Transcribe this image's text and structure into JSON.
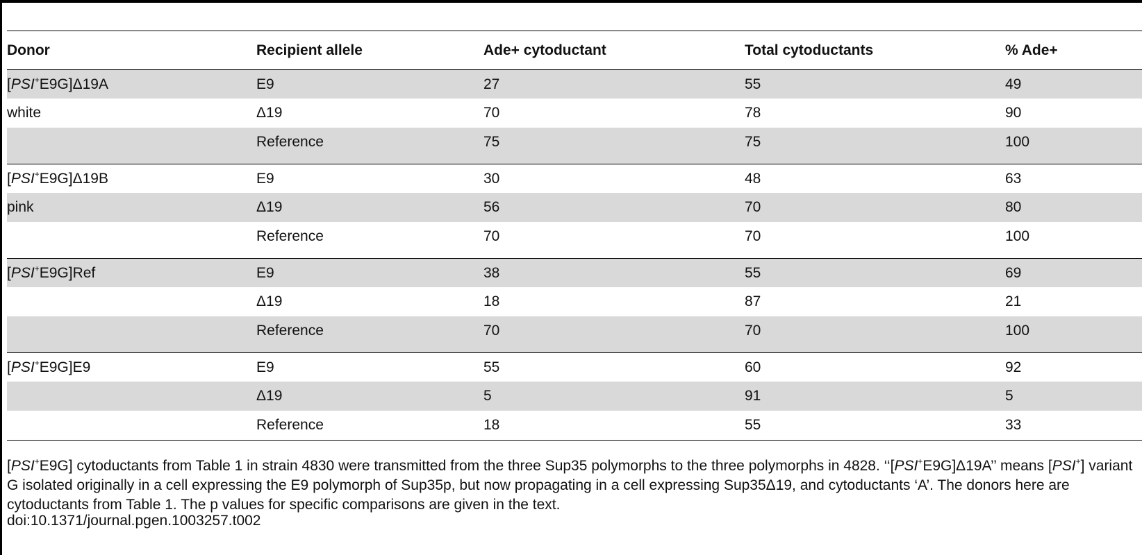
{
  "table": {
    "headers": [
      "Donor",
      "Recipient allele",
      "Ade+ cytoductant",
      "Total cytoductants",
      "% Ade+"
    ],
    "groups": [
      {
        "donor": {
          "prefix": "[",
          "psi": "PSI",
          "sup": "+",
          "rest": "E9G]Δ19A"
        },
        "rows": [
          {
            "donor_text": "",
            "allele": "E9",
            "ade": "27",
            "total": "55",
            "pct": "49"
          },
          {
            "donor_text": "white",
            "allele": "Δ19",
            "ade": "70",
            "total": "78",
            "pct": "90"
          },
          {
            "donor_text": "",
            "allele": "Reference",
            "ade": "75",
            "total": "75",
            "pct": "100"
          }
        ]
      },
      {
        "donor": {
          "prefix": "[",
          "psi": "PSI",
          "sup": "+",
          "rest": "E9G]Δ19B"
        },
        "rows": [
          {
            "donor_text": "",
            "allele": "E9",
            "ade": "30",
            "total": "48",
            "pct": "63"
          },
          {
            "donor_text": "pink",
            "allele": "Δ19",
            "ade": "56",
            "total": "70",
            "pct": "80"
          },
          {
            "donor_text": "",
            "allele": "Reference",
            "ade": "70",
            "total": "70",
            "pct": "100"
          }
        ]
      },
      {
        "donor": {
          "prefix": "[",
          "psi": "PSI",
          "sup": "+",
          "rest": "E9G]Ref"
        },
        "rows": [
          {
            "donor_text": "",
            "allele": "E9",
            "ade": "38",
            "total": "55",
            "pct": "69"
          },
          {
            "donor_text": "",
            "allele": "Δ19",
            "ade": "18",
            "total": "87",
            "pct": "21"
          },
          {
            "donor_text": "",
            "allele": "Reference",
            "ade": "70",
            "total": "70",
            "pct": "100"
          }
        ]
      },
      {
        "donor": {
          "prefix": "[",
          "psi": "PSI",
          "sup": "+",
          "rest": "E9G]E9"
        },
        "rows": [
          {
            "donor_text": "",
            "allele": "E9",
            "ade": "55",
            "total": "60",
            "pct": "92"
          },
          {
            "donor_text": "",
            "allele": "Δ19",
            "ade": "5",
            "total": "91",
            "pct": "5"
          },
          {
            "donor_text": "",
            "allele": "Reference",
            "ade": "18",
            "total": "55",
            "pct": "33"
          }
        ]
      }
    ]
  },
  "footnote": {
    "p1_prefix": "[",
    "p1_psi": "PSI",
    "p1_sup": "+",
    "p1_rest": "E9G] cytoductants from Table 1 in strain 4830 were transmitted from the three Sup35 polymorphs to the three polymorphs in 4828. ‘‘[",
    "p2_psi": "PSI",
    "p2_sup": "+",
    "p2_rest": "E9G]Δ19A’’ means [",
    "p3_psi": "PSI",
    "p3_sup": "+",
    "p3_rest": "] variant G isolated originally in a cell expressing the E9 polymorph of Sup35p, but now propagating in a cell expressing Sup35Δ19, and cytoductants ‘A’. The donors here are cytoductants from Table 1. The p values for specific comparisons are given in the text."
  },
  "doi": "doi:10.1371/journal.pgen.1003257.t002",
  "colors": {
    "shade": "#d9d9d9",
    "rule": "#000000"
  }
}
